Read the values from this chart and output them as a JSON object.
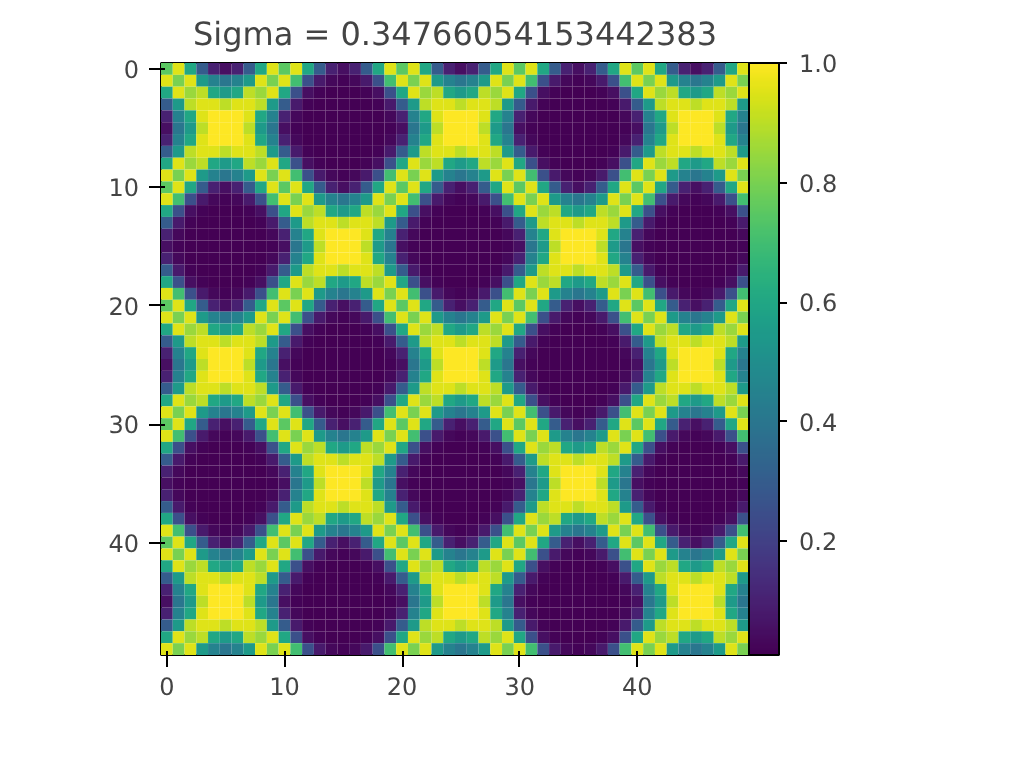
{
  "chart_data": {
    "type": "heatmap",
    "title": "Sigma = 0.34766054153442383",
    "xlim": [
      -0.5,
      49.5
    ],
    "xticks": [
      0,
      10,
      20,
      30,
      40
    ],
    "ylim": [
      49.5,
      -0.5
    ],
    "yticks": [
      0,
      10,
      20,
      30,
      40
    ],
    "clim": [
      0.01,
      1
    ],
    "cticks": [
      0.2,
      0.4,
      0.6,
      0.8,
      {
        "value": 1,
        "label": "1.0"
      }
    ],
    "grid": false,
    "cells": [
      [
        0.75,
        0.95,
        0.6,
        0.3,
        0.1,
        0.05,
        0.1,
        0.3,
        0.6,
        0.95,
        0.75,
        0.95,
        0.6,
        0.3,
        0.1,
        0.05,
        0.1,
        0.3,
        0.6,
        0.95,
        0.75,
        0.95,
        0.6,
        0.3,
        0.1,
        0.05,
        0.1,
        0.3,
        0.6,
        0.95,
        0.75,
        0.95,
        0.6,
        0.3,
        0.1,
        0.05,
        0.1,
        0.3,
        0.6,
        0.95,
        0.75,
        0.95,
        0.6,
        0.3,
        0.1,
        0.05,
        0.1,
        0.3,
        0.6,
        0.95
      ],
      [
        0.95,
        0.8,
        0.95,
        0.55,
        0.45,
        0.4,
        0.45,
        0.55,
        0.95,
        0.8,
        0.95,
        0.7,
        0.25,
        0.08,
        0.03,
        0.02,
        0.03,
        0.08,
        0.25,
        0.7,
        0.95,
        0.8,
        0.95,
        0.55,
        0.45,
        0.4,
        0.45,
        0.55,
        0.95,
        0.8,
        0.95,
        0.7,
        0.25,
        0.08,
        0.03,
        0.02,
        0.03,
        0.08,
        0.25,
        0.7,
        0.95,
        0.8,
        0.95,
        0.55,
        0.45,
        0.4,
        0.45,
        0.55,
        0.95,
        0.8
      ],
      [
        0.6,
        0.95,
        0.85,
        0.9,
        0.6,
        0.55,
        0.6,
        0.9,
        0.85,
        0.95,
        0.6,
        0.25,
        0.05,
        0.02,
        0.01,
        0.01,
        0.01,
        0.02,
        0.05,
        0.25,
        0.6,
        0.95,
        0.85,
        0.9,
        0.6,
        0.55,
        0.6,
        0.9,
        0.85,
        0.95,
        0.6,
        0.25,
        0.05,
        0.02,
        0.01,
        0.01,
        0.01,
        0.02,
        0.05,
        0.25,
        0.6,
        0.95,
        0.85,
        0.9,
        0.6,
        0.55,
        0.6,
        0.9,
        0.85,
        0.95
      ],
      [
        0.3,
        0.55,
        0.9,
        0.95,
        0.95,
        0.9,
        0.95,
        0.95,
        0.9,
        0.55,
        0.3,
        0.08,
        0.02,
        0.01,
        0.01,
        0.01,
        0.01,
        0.01,
        0.02,
        0.08,
        0.3,
        0.55,
        0.9,
        0.95,
        0.95,
        0.9,
        0.95,
        0.95,
        0.9,
        0.55,
        0.3,
        0.08,
        0.02,
        0.01,
        0.01,
        0.01,
        0.01,
        0.01,
        0.02,
        0.08,
        0.3,
        0.55,
        0.9,
        0.95,
        0.95,
        0.9,
        0.95,
        0.95,
        0.9,
        0.55
      ],
      [
        0.1,
        0.45,
        0.6,
        0.95,
        1,
        1,
        1,
        0.95,
        0.6,
        0.45,
        0.1,
        0.03,
        0.01,
        0.01,
        0.01,
        0.01,
        0.01,
        0.01,
        0.01,
        0.03,
        0.1,
        0.45,
        0.6,
        0.95,
        1,
        1,
        1,
        0.95,
        0.6,
        0.45,
        0.1,
        0.03,
        0.01,
        0.01,
        0.01,
        0.01,
        0.01,
        0.01,
        0.01,
        0.03,
        0.1,
        0.45,
        0.6,
        0.95,
        1,
        1,
        1,
        0.95,
        0.6,
        0.45
      ],
      [
        0.05,
        0.4,
        0.55,
        0.9,
        1,
        1,
        1,
        0.9,
        0.55,
        0.4,
        0.05,
        0.02,
        0.01,
        0.01,
        0.01,
        0.01,
        0.01,
        0.01,
        0.01,
        0.02,
        0.05,
        0.4,
        0.55,
        0.9,
        1,
        1,
        1,
        0.9,
        0.55,
        0.4,
        0.05,
        0.02,
        0.01,
        0.01,
        0.01,
        0.01,
        0.01,
        0.01,
        0.01,
        0.02,
        0.05,
        0.4,
        0.55,
        0.9,
        1,
        1,
        1,
        0.9,
        0.55,
        0.4
      ],
      [
        0.1,
        0.45,
        0.6,
        0.95,
        1,
        1,
        1,
        0.95,
        0.6,
        0.45,
        0.1,
        0.03,
        0.01,
        0.01,
        0.01,
        0.01,
        0.01,
        0.01,
        0.01,
        0.03,
        0.1,
        0.45,
        0.6,
        0.95,
        1,
        1,
        1,
        0.95,
        0.6,
        0.45,
        0.1,
        0.03,
        0.01,
        0.01,
        0.01,
        0.01,
        0.01,
        0.01,
        0.01,
        0.03,
        0.1,
        0.45,
        0.6,
        0.95,
        1,
        1,
        1,
        0.95,
        0.6,
        0.45
      ],
      [
        0.3,
        0.55,
        0.9,
        0.95,
        0.95,
        0.9,
        0.95,
        0.95,
        0.9,
        0.55,
        0.3,
        0.08,
        0.02,
        0.01,
        0.01,
        0.01,
        0.01,
        0.01,
        0.02,
        0.08,
        0.3,
        0.55,
        0.9,
        0.95,
        0.95,
        0.9,
        0.95,
        0.95,
        0.9,
        0.55,
        0.3,
        0.08,
        0.02,
        0.01,
        0.01,
        0.01,
        0.01,
        0.01,
        0.02,
        0.08,
        0.3,
        0.55,
        0.9,
        0.95,
        0.95,
        0.9,
        0.95,
        0.95,
        0.9,
        0.55
      ],
      [
        0.6,
        0.95,
        0.85,
        0.9,
        0.6,
        0.55,
        0.6,
        0.9,
        0.85,
        0.95,
        0.6,
        0.25,
        0.05,
        0.02,
        0.01,
        0.01,
        0.01,
        0.02,
        0.05,
        0.25,
        0.6,
        0.95,
        0.85,
        0.9,
        0.6,
        0.55,
        0.6,
        0.9,
        0.85,
        0.95,
        0.6,
        0.25,
        0.05,
        0.02,
        0.01,
        0.01,
        0.01,
        0.02,
        0.05,
        0.25,
        0.6,
        0.95,
        0.85,
        0.9,
        0.6,
        0.55,
        0.6,
        0.9,
        0.85,
        0.95
      ],
      [
        0.95,
        0.8,
        0.95,
        0.55,
        0.45,
        0.4,
        0.45,
        0.55,
        0.95,
        0.8,
        0.95,
        0.7,
        0.25,
        0.08,
        0.03,
        0.02,
        0.03,
        0.08,
        0.25,
        0.7,
        0.95,
        0.8,
        0.95,
        0.55,
        0.45,
        0.4,
        0.45,
        0.55,
        0.95,
        0.8,
        0.95,
        0.7,
        0.25,
        0.08,
        0.03,
        0.02,
        0.03,
        0.08,
        0.25,
        0.7,
        0.95,
        0.8,
        0.95,
        0.55,
        0.45,
        0.4,
        0.45,
        0.55,
        0.95,
        0.8
      ],
      [
        0.75,
        0.95,
        0.6,
        0.3,
        0.1,
        0.05,
        0.1,
        0.3,
        0.6,
        0.95,
        0.75,
        0.95,
        0.6,
        0.3,
        0.1,
        0.05,
        0.1,
        0.3,
        0.6,
        0.95,
        0.75,
        0.95,
        0.6,
        0.3,
        0.1,
        0.05,
        0.1,
        0.3,
        0.6,
        0.95,
        0.75,
        0.95,
        0.6,
        0.3,
        0.1,
        0.05,
        0.1,
        0.3,
        0.6,
        0.95,
        0.75,
        0.95,
        0.6,
        0.3,
        0.1,
        0.05,
        0.1,
        0.3,
        0.6,
        0.95
      ],
      [
        0.95,
        0.7,
        0.25,
        0.08,
        0.03,
        0.02,
        0.03,
        0.08,
        0.25,
        0.7,
        0.95,
        0.8,
        0.95,
        0.55,
        0.45,
        0.4,
        0.45,
        0.55,
        0.95,
        0.8,
        0.95,
        0.7,
        0.25,
        0.08,
        0.03,
        0.02,
        0.03,
        0.08,
        0.25,
        0.7,
        0.95,
        0.8,
        0.95,
        0.55,
        0.45,
        0.4,
        0.45,
        0.55,
        0.95,
        0.8,
        0.95,
        0.7,
        0.25,
        0.08,
        0.03,
        0.02,
        0.03,
        0.08,
        0.25,
        0.7
      ],
      [
        0.6,
        0.25,
        0.05,
        0.02,
        0.01,
        0.01,
        0.01,
        0.02,
        0.05,
        0.25,
        0.6,
        0.95,
        0.85,
        0.9,
        0.6,
        0.55,
        0.6,
        0.9,
        0.85,
        0.95,
        0.6,
        0.25,
        0.05,
        0.02,
        0.01,
        0.01,
        0.01,
        0.02,
        0.05,
        0.25,
        0.6,
        0.95,
        0.85,
        0.9,
        0.6,
        0.55,
        0.6,
        0.9,
        0.85,
        0.95,
        0.6,
        0.25,
        0.05,
        0.02,
        0.01,
        0.01,
        0.01,
        0.02,
        0.05,
        0.25
      ],
      [
        0.3,
        0.08,
        0.02,
        0.01,
        0.01,
        0.01,
        0.01,
        0.01,
        0.02,
        0.08,
        0.3,
        0.55,
        0.9,
        0.95,
        0.95,
        0.9,
        0.95,
        0.95,
        0.9,
        0.55,
        0.3,
        0.08,
        0.02,
        0.01,
        0.01,
        0.01,
        0.01,
        0.01,
        0.02,
        0.08,
        0.3,
        0.55,
        0.9,
        0.95,
        0.95,
        0.9,
        0.95,
        0.95,
        0.9,
        0.55,
        0.3,
        0.08,
        0.02,
        0.01,
        0.01,
        0.01,
        0.01,
        0.01,
        0.02,
        0.08
      ],
      [
        0.1,
        0.03,
        0.01,
        0.01,
        0.01,
        0.01,
        0.01,
        0.01,
        0.01,
        0.03,
        0.1,
        0.45,
        0.6,
        0.95,
        1,
        1,
        1,
        0.95,
        0.6,
        0.45,
        0.1,
        0.03,
        0.01,
        0.01,
        0.01,
        0.01,
        0.01,
        0.01,
        0.01,
        0.03,
        0.1,
        0.45,
        0.6,
        0.95,
        1,
        1,
        1,
        0.95,
        0.6,
        0.45,
        0.1,
        0.03,
        0.01,
        0.01,
        0.01,
        0.01,
        0.01,
        0.01,
        0.01,
        0.03
      ],
      [
        0.05,
        0.02,
        0.01,
        0.01,
        0.01,
        0.01,
        0.01,
        0.01,
        0.01,
        0.02,
        0.05,
        0.4,
        0.55,
        0.9,
        1,
        1,
        1,
        0.9,
        0.55,
        0.4,
        0.05,
        0.02,
        0.01,
        0.01,
        0.01,
        0.01,
        0.01,
        0.01,
        0.01,
        0.02,
        0.05,
        0.4,
        0.55,
        0.9,
        1,
        1,
        1,
        0.9,
        0.55,
        0.4,
        0.05,
        0.02,
        0.01,
        0.01,
        0.01,
        0.01,
        0.01,
        0.01,
        0.01,
        0.02
      ],
      [
        0.1,
        0.03,
        0.01,
        0.01,
        0.01,
        0.01,
        0.01,
        0.01,
        0.01,
        0.03,
        0.1,
        0.45,
        0.6,
        0.95,
        1,
        1,
        1,
        0.95,
        0.6,
        0.45,
        0.1,
        0.03,
        0.01,
        0.01,
        0.01,
        0.01,
        0.01,
        0.01,
        0.01,
        0.03,
        0.1,
        0.45,
        0.6,
        0.95,
        1,
        1,
        1,
        0.95,
        0.6,
        0.45,
        0.1,
        0.03,
        0.01,
        0.01,
        0.01,
        0.01,
        0.01,
        0.01,
        0.01,
        0.03
      ],
      [
        0.3,
        0.08,
        0.02,
        0.01,
        0.01,
        0.01,
        0.01,
        0.01,
        0.02,
        0.08,
        0.3,
        0.55,
        0.9,
        0.95,
        0.95,
        0.9,
        0.95,
        0.95,
        0.9,
        0.55,
        0.3,
        0.08,
        0.02,
        0.01,
        0.01,
        0.01,
        0.01,
        0.01,
        0.02,
        0.08,
        0.3,
        0.55,
        0.9,
        0.95,
        0.95,
        0.9,
        0.95,
        0.95,
        0.9,
        0.55,
        0.3,
        0.08,
        0.02,
        0.01,
        0.01,
        0.01,
        0.01,
        0.01,
        0.02,
        0.08
      ],
      [
        0.6,
        0.25,
        0.05,
        0.02,
        0.01,
        0.01,
        0.01,
        0.02,
        0.05,
        0.25,
        0.6,
        0.95,
        0.85,
        0.9,
        0.6,
        0.55,
        0.6,
        0.9,
        0.85,
        0.95,
        0.6,
        0.25,
        0.05,
        0.02,
        0.01,
        0.01,
        0.01,
        0.02,
        0.05,
        0.25,
        0.6,
        0.95,
        0.85,
        0.9,
        0.6,
        0.55,
        0.6,
        0.9,
        0.85,
        0.95,
        0.6,
        0.25,
        0.05,
        0.02,
        0.01,
        0.01,
        0.01,
        0.02,
        0.05,
        0.25
      ],
      [
        0.95,
        0.7,
        0.25,
        0.08,
        0.03,
        0.02,
        0.03,
        0.08,
        0.25,
        0.7,
        0.95,
        0.8,
        0.95,
        0.55,
        0.45,
        0.4,
        0.45,
        0.55,
        0.95,
        0.8,
        0.95,
        0.7,
        0.25,
        0.08,
        0.03,
        0.02,
        0.03,
        0.08,
        0.25,
        0.7,
        0.95,
        0.8,
        0.95,
        0.55,
        0.45,
        0.4,
        0.45,
        0.55,
        0.95,
        0.8,
        0.95,
        0.7,
        0.25,
        0.08,
        0.03,
        0.02,
        0.03,
        0.08,
        0.25,
        0.7
      ],
      [
        0.75,
        0.95,
        0.6,
        0.3,
        0.1,
        0.05,
        0.1,
        0.3,
        0.6,
        0.95,
        0.75,
        0.95,
        0.6,
        0.3,
        0.1,
        0.05,
        0.1,
        0.3,
        0.6,
        0.95,
        0.75,
        0.95,
        0.6,
        0.3,
        0.1,
        0.05,
        0.1,
        0.3,
        0.6,
        0.95,
        0.75,
        0.95,
        0.6,
        0.3,
        0.1,
        0.05,
        0.1,
        0.3,
        0.6,
        0.95,
        0.75,
        0.95,
        0.6,
        0.3,
        0.1,
        0.05,
        0.1,
        0.3,
        0.6,
        0.95
      ],
      [
        0.95,
        0.8,
        0.95,
        0.55,
        0.45,
        0.4,
        0.45,
        0.55,
        0.95,
        0.8,
        0.95,
        0.7,
        0.25,
        0.08,
        0.03,
        0.02,
        0.03,
        0.08,
        0.25,
        0.7,
        0.95,
        0.8,
        0.95,
        0.55,
        0.45,
        0.4,
        0.45,
        0.55,
        0.95,
        0.8,
        0.95,
        0.7,
        0.25,
        0.08,
        0.03,
        0.02,
        0.03,
        0.08,
        0.25,
        0.7,
        0.95,
        0.8,
        0.95,
        0.55,
        0.45,
        0.4,
        0.45,
        0.55,
        0.95,
        0.8
      ],
      [
        0.6,
        0.95,
        0.85,
        0.9,
        0.6,
        0.55,
        0.6,
        0.9,
        0.85,
        0.95,
        0.6,
        0.25,
        0.05,
        0.02,
        0.01,
        0.01,
        0.01,
        0.02,
        0.05,
        0.25,
        0.6,
        0.95,
        0.85,
        0.9,
        0.6,
        0.55,
        0.6,
        0.9,
        0.85,
        0.95,
        0.6,
        0.25,
        0.05,
        0.02,
        0.01,
        0.01,
        0.01,
        0.02,
        0.05,
        0.25,
        0.6,
        0.95,
        0.85,
        0.9,
        0.6,
        0.55,
        0.6,
        0.9,
        0.85,
        0.95
      ],
      [
        0.3,
        0.55,
        0.9,
        0.95,
        0.95,
        0.9,
        0.95,
        0.95,
        0.9,
        0.55,
        0.3,
        0.08,
        0.02,
        0.01,
        0.01,
        0.01,
        0.01,
        0.01,
        0.02,
        0.08,
        0.3,
        0.55,
        0.9,
        0.95,
        0.95,
        0.9,
        0.95,
        0.95,
        0.9,
        0.55,
        0.3,
        0.08,
        0.02,
        0.01,
        0.01,
        0.01,
        0.01,
        0.01,
        0.02,
        0.08,
        0.3,
        0.55,
        0.9,
        0.95,
        0.95,
        0.9,
        0.95,
        0.95,
        0.9,
        0.55
      ],
      [
        0.1,
        0.45,
        0.6,
        0.95,
        1,
        1,
        1,
        0.95,
        0.6,
        0.45,
        0.1,
        0.03,
        0.01,
        0.01,
        0.01,
        0.01,
        0.01,
        0.01,
        0.01,
        0.03,
        0.1,
        0.45,
        0.6,
        0.95,
        1,
        1,
        1,
        0.95,
        0.6,
        0.45,
        0.1,
        0.03,
        0.01,
        0.01,
        0.01,
        0.01,
        0.01,
        0.01,
        0.01,
        0.03,
        0.1,
        0.45,
        0.6,
        0.95,
        1,
        1,
        1,
        0.95,
        0.6,
        0.45
      ],
      [
        0.05,
        0.4,
        0.55,
        0.9,
        1,
        1,
        1,
        0.9,
        0.55,
        0.4,
        0.05,
        0.02,
        0.01,
        0.01,
        0.01,
        0.01,
        0.01,
        0.01,
        0.01,
        0.02,
        0.05,
        0.4,
        0.55,
        0.9,
        1,
        1,
        1,
        0.9,
        0.55,
        0.4,
        0.05,
        0.02,
        0.01,
        0.01,
        0.01,
        0.01,
        0.01,
        0.01,
        0.01,
        0.02,
        0.05,
        0.4,
        0.55,
        0.9,
        1,
        1,
        1,
        0.9,
        0.55,
        0.4
      ],
      [
        0.1,
        0.45,
        0.6,
        0.95,
        1,
        1,
        1,
        0.95,
        0.6,
        0.45,
        0.1,
        0.03,
        0.01,
        0.01,
        0.01,
        0.01,
        0.01,
        0.01,
        0.01,
        0.03,
        0.1,
        0.45,
        0.6,
        0.95,
        1,
        1,
        1,
        0.95,
        0.6,
        0.45,
        0.1,
        0.03,
        0.01,
        0.01,
        0.01,
        0.01,
        0.01,
        0.01,
        0.01,
        0.03,
        0.1,
        0.45,
        0.6,
        0.95,
        1,
        1,
        1,
        0.95,
        0.6,
        0.45
      ],
      [
        0.3,
        0.55,
        0.9,
        0.95,
        0.95,
        0.9,
        0.95,
        0.95,
        0.9,
        0.55,
        0.3,
        0.08,
        0.02,
        0.01,
        0.01,
        0.01,
        0.01,
        0.01,
        0.02,
        0.08,
        0.3,
        0.55,
        0.9,
        0.95,
        0.95,
        0.9,
        0.95,
        0.95,
        0.9,
        0.55,
        0.3,
        0.08,
        0.02,
        0.01,
        0.01,
        0.01,
        0.01,
        0.01,
        0.02,
        0.08,
        0.3,
        0.55,
        0.9,
        0.95,
        0.95,
        0.9,
        0.95,
        0.95,
        0.9,
        0.55
      ],
      [
        0.6,
        0.95,
        0.85,
        0.9,
        0.6,
        0.55,
        0.6,
        0.9,
        0.85,
        0.95,
        0.6,
        0.25,
        0.05,
        0.02,
        0.01,
        0.01,
        0.01,
        0.02,
        0.05,
        0.25,
        0.6,
        0.95,
        0.85,
        0.9,
        0.6,
        0.55,
        0.6,
        0.9,
        0.85,
        0.95,
        0.6,
        0.25,
        0.05,
        0.02,
        0.01,
        0.01,
        0.01,
        0.02,
        0.05,
        0.25,
        0.6,
        0.95,
        0.85,
        0.9,
        0.6,
        0.55,
        0.6,
        0.9,
        0.85,
        0.95
      ],
      [
        0.95,
        0.8,
        0.95,
        0.55,
        0.45,
        0.4,
        0.45,
        0.55,
        0.95,
        0.8,
        0.95,
        0.7,
        0.25,
        0.08,
        0.03,
        0.02,
        0.03,
        0.08,
        0.25,
        0.7,
        0.95,
        0.8,
        0.95,
        0.55,
        0.45,
        0.4,
        0.45,
        0.55,
        0.95,
        0.8,
        0.95,
        0.7,
        0.25,
        0.08,
        0.03,
        0.02,
        0.03,
        0.08,
        0.25,
        0.7,
        0.95,
        0.8,
        0.95,
        0.55,
        0.45,
        0.4,
        0.45,
        0.55,
        0.95,
        0.8
      ],
      [
        0.75,
        0.95,
        0.6,
        0.3,
        0.1,
        0.05,
        0.1,
        0.3,
        0.6,
        0.95,
        0.75,
        0.95,
        0.6,
        0.3,
        0.1,
        0.05,
        0.1,
        0.3,
        0.6,
        0.95,
        0.75,
        0.95,
        0.6,
        0.3,
        0.1,
        0.05,
        0.1,
        0.3,
        0.6,
        0.95,
        0.75,
        0.95,
        0.6,
        0.3,
        0.1,
        0.05,
        0.1,
        0.3,
        0.6,
        0.95,
        0.75,
        0.95,
        0.6,
        0.3,
        0.1,
        0.05,
        0.1,
        0.3,
        0.6,
        0.95
      ],
      [
        0.95,
        0.7,
        0.25,
        0.08,
        0.03,
        0.02,
        0.03,
        0.08,
        0.25,
        0.7,
        0.95,
        0.8,
        0.95,
        0.55,
        0.45,
        0.4,
        0.45,
        0.55,
        0.95,
        0.8,
        0.95,
        0.7,
        0.25,
        0.08,
        0.03,
        0.02,
        0.03,
        0.08,
        0.25,
        0.7,
        0.95,
        0.8,
        0.95,
        0.55,
        0.45,
        0.4,
        0.45,
        0.55,
        0.95,
        0.8,
        0.95,
        0.7,
        0.25,
        0.08,
        0.03,
        0.02,
        0.03,
        0.08,
        0.25,
        0.7
      ],
      [
        0.6,
        0.25,
        0.05,
        0.02,
        0.01,
        0.01,
        0.01,
        0.02,
        0.05,
        0.25,
        0.6,
        0.95,
        0.85,
        0.9,
        0.6,
        0.55,
        0.6,
        0.9,
        0.85,
        0.95,
        0.6,
        0.25,
        0.05,
        0.02,
        0.01,
        0.01,
        0.01,
        0.02,
        0.05,
        0.25,
        0.6,
        0.95,
        0.85,
        0.9,
        0.6,
        0.55,
        0.6,
        0.9,
        0.85,
        0.95,
        0.6,
        0.25,
        0.05,
        0.02,
        0.01,
        0.01,
        0.01,
        0.02,
        0.05,
        0.25
      ],
      [
        0.3,
        0.08,
        0.02,
        0.01,
        0.01,
        0.01,
        0.01,
        0.01,
        0.02,
        0.08,
        0.3,
        0.55,
        0.9,
        0.95,
        0.95,
        0.9,
        0.95,
        0.95,
        0.9,
        0.55,
        0.3,
        0.08,
        0.02,
        0.01,
        0.01,
        0.01,
        0.01,
        0.01,
        0.02,
        0.08,
        0.3,
        0.55,
        0.9,
        0.95,
        0.95,
        0.9,
        0.95,
        0.95,
        0.9,
        0.55,
        0.3,
        0.08,
        0.02,
        0.01,
        0.01,
        0.01,
        0.01,
        0.01,
        0.02,
        0.08
      ],
      [
        0.1,
        0.03,
        0.01,
        0.01,
        0.01,
        0.01,
        0.01,
        0.01,
        0.01,
        0.03,
        0.1,
        0.45,
        0.6,
        0.95,
        1,
        1,
        1,
        0.95,
        0.6,
        0.45,
        0.1,
        0.03,
        0.01,
        0.01,
        0.01,
        0.01,
        0.01,
        0.01,
        0.01,
        0.03,
        0.1,
        0.45,
        0.6,
        0.95,
        1,
        1,
        1,
        0.95,
        0.6,
        0.45,
        0.1,
        0.03,
        0.01,
        0.01,
        0.01,
        0.01,
        0.01,
        0.01,
        0.01,
        0.03
      ],
      [
        0.05,
        0.02,
        0.01,
        0.01,
        0.01,
        0.01,
        0.01,
        0.01,
        0.01,
        0.02,
        0.05,
        0.4,
        0.55,
        0.9,
        1,
        1,
        1,
        0.9,
        0.55,
        0.4,
        0.05,
        0.02,
        0.01,
        0.01,
        0.01,
        0.01,
        0.01,
        0.01,
        0.01,
        0.02,
        0.05,
        0.4,
        0.55,
        0.9,
        1,
        1,
        1,
        0.9,
        0.55,
        0.4,
        0.05,
        0.02,
        0.01,
        0.01,
        0.01,
        0.01,
        0.01,
        0.01,
        0.01,
        0.02
      ],
      [
        0.1,
        0.03,
        0.01,
        0.01,
        0.01,
        0.01,
        0.01,
        0.01,
        0.01,
        0.03,
        0.1,
        0.45,
        0.6,
        0.95,
        1,
        1,
        1,
        0.95,
        0.6,
        0.45,
        0.1,
        0.03,
        0.01,
        0.01,
        0.01,
        0.01,
        0.01,
        0.01,
        0.01,
        0.03,
        0.1,
        0.45,
        0.6,
        0.95,
        1,
        1,
        1,
        0.95,
        0.6,
        0.45,
        0.1,
        0.03,
        0.01,
        0.01,
        0.01,
        0.01,
        0.01,
        0.01,
        0.01,
        0.03
      ],
      [
        0.3,
        0.08,
        0.02,
        0.01,
        0.01,
        0.01,
        0.01,
        0.01,
        0.02,
        0.08,
        0.3,
        0.55,
        0.9,
        0.95,
        0.95,
        0.9,
        0.95,
        0.95,
        0.9,
        0.55,
        0.3,
        0.08,
        0.02,
        0.01,
        0.01,
        0.01,
        0.01,
        0.01,
        0.02,
        0.08,
        0.3,
        0.55,
        0.9,
        0.95,
        0.95,
        0.9,
        0.95,
        0.95,
        0.9,
        0.55,
        0.3,
        0.08,
        0.02,
        0.01,
        0.01,
        0.01,
        0.01,
        0.01,
        0.02,
        0.08
      ],
      [
        0.6,
        0.25,
        0.05,
        0.02,
        0.01,
        0.01,
        0.01,
        0.02,
        0.05,
        0.25,
        0.6,
        0.95,
        0.85,
        0.9,
        0.6,
        0.55,
        0.6,
        0.9,
        0.85,
        0.95,
        0.6,
        0.25,
        0.05,
        0.02,
        0.01,
        0.01,
        0.01,
        0.02,
        0.05,
        0.25,
        0.6,
        0.95,
        0.85,
        0.9,
        0.6,
        0.55,
        0.6,
        0.9,
        0.85,
        0.95,
        0.6,
        0.25,
        0.05,
        0.02,
        0.01,
        0.01,
        0.01,
        0.02,
        0.05,
        0.25
      ],
      [
        0.95,
        0.7,
        0.25,
        0.08,
        0.03,
        0.02,
        0.03,
        0.08,
        0.25,
        0.7,
        0.95,
        0.8,
        0.95,
        0.55,
        0.45,
        0.4,
        0.45,
        0.55,
        0.95,
        0.8,
        0.95,
        0.7,
        0.25,
        0.08,
        0.03,
        0.02,
        0.03,
        0.08,
        0.25,
        0.7,
        0.95,
        0.8,
        0.95,
        0.55,
        0.45,
        0.4,
        0.45,
        0.55,
        0.95,
        0.8,
        0.95,
        0.7,
        0.25,
        0.08,
        0.03,
        0.02,
        0.03,
        0.08,
        0.25,
        0.7
      ],
      [
        0.75,
        0.95,
        0.6,
        0.3,
        0.1,
        0.05,
        0.1,
        0.3,
        0.6,
        0.95,
        0.75,
        0.95,
        0.6,
        0.3,
        0.1,
        0.05,
        0.1,
        0.3,
        0.6,
        0.95,
        0.75,
        0.95,
        0.6,
        0.3,
        0.1,
        0.05,
        0.1,
        0.3,
        0.6,
        0.95,
        0.75,
        0.95,
        0.6,
        0.3,
        0.1,
        0.05,
        0.1,
        0.3,
        0.6,
        0.95,
        0.75,
        0.95,
        0.6,
        0.3,
        0.1,
        0.05,
        0.1,
        0.3,
        0.6,
        0.95
      ],
      [
        0.95,
        0.8,
        0.95,
        0.55,
        0.45,
        0.4,
        0.45,
        0.55,
        0.95,
        0.8,
        0.95,
        0.7,
        0.25,
        0.08,
        0.03,
        0.02,
        0.03,
        0.08,
        0.25,
        0.7,
        0.95,
        0.8,
        0.95,
        0.55,
        0.45,
        0.4,
        0.45,
        0.55,
        0.95,
        0.8,
        0.95,
        0.7,
        0.25,
        0.08,
        0.03,
        0.02,
        0.03,
        0.08,
        0.25,
        0.7,
        0.95,
        0.8,
        0.95,
        0.55,
        0.45,
        0.4,
        0.45,
        0.55,
        0.95,
        0.8
      ],
      [
        0.6,
        0.95,
        0.85,
        0.9,
        0.6,
        0.55,
        0.6,
        0.9,
        0.85,
        0.95,
        0.6,
        0.25,
        0.05,
        0.02,
        0.01,
        0.01,
        0.01,
        0.02,
        0.05,
        0.25,
        0.6,
        0.95,
        0.85,
        0.9,
        0.6,
        0.55,
        0.6,
        0.9,
        0.85,
        0.95,
        0.6,
        0.25,
        0.05,
        0.02,
        0.01,
        0.01,
        0.01,
        0.02,
        0.05,
        0.25,
        0.6,
        0.95,
        0.85,
        0.9,
        0.6,
        0.55,
        0.6,
        0.9,
        0.85,
        0.95
      ],
      [
        0.3,
        0.55,
        0.9,
        0.95,
        0.95,
        0.9,
        0.95,
        0.95,
        0.9,
        0.55,
        0.3,
        0.08,
        0.02,
        0.01,
        0.01,
        0.01,
        0.01,
        0.01,
        0.02,
        0.08,
        0.3,
        0.55,
        0.9,
        0.95,
        0.95,
        0.9,
        0.95,
        0.95,
        0.9,
        0.55,
        0.3,
        0.08,
        0.02,
        0.01,
        0.01,
        0.01,
        0.01,
        0.01,
        0.02,
        0.08,
        0.3,
        0.55,
        0.9,
        0.95,
        0.95,
        0.9,
        0.95,
        0.95,
        0.9,
        0.55
      ],
      [
        0.1,
        0.45,
        0.6,
        0.95,
        1,
        1,
        1,
        0.95,
        0.6,
        0.45,
        0.1,
        0.03,
        0.01,
        0.01,
        0.01,
        0.01,
        0.01,
        0.01,
        0.01,
        0.03,
        0.1,
        0.45,
        0.6,
        0.95,
        1,
        1,
        1,
        0.95,
        0.6,
        0.45,
        0.1,
        0.03,
        0.01,
        0.01,
        0.01,
        0.01,
        0.01,
        0.01,
        0.01,
        0.03,
        0.1,
        0.45,
        0.6,
        0.95,
        1,
        1,
        1,
        0.95,
        0.6,
        0.45
      ],
      [
        0.05,
        0.4,
        0.55,
        0.9,
        1,
        1,
        1,
        0.9,
        0.55,
        0.4,
        0.05,
        0.02,
        0.01,
        0.01,
        0.01,
        0.01,
        0.01,
        0.01,
        0.01,
        0.02,
        0.05,
        0.4,
        0.55,
        0.9,
        1,
        1,
        1,
        0.9,
        0.55,
        0.4,
        0.05,
        0.02,
        0.01,
        0.01,
        0.01,
        0.01,
        0.01,
        0.01,
        0.01,
        0.02,
        0.05,
        0.4,
        0.55,
        0.9,
        1,
        1,
        1,
        0.9,
        0.55,
        0.4
      ],
      [
        0.1,
        0.45,
        0.6,
        0.95,
        1,
        1,
        1,
        0.95,
        0.6,
        0.45,
        0.1,
        0.03,
        0.01,
        0.01,
        0.01,
        0.01,
        0.01,
        0.01,
        0.01,
        0.03,
        0.1,
        0.45,
        0.6,
        0.95,
        1,
        1,
        1,
        0.95,
        0.6,
        0.45,
        0.1,
        0.03,
        0.01,
        0.01,
        0.01,
        0.01,
        0.01,
        0.01,
        0.01,
        0.03,
        0.1,
        0.45,
        0.6,
        0.95,
        1,
        1,
        1,
        0.95,
        0.6,
        0.45
      ],
      [
        0.3,
        0.55,
        0.9,
        0.95,
        0.95,
        0.9,
        0.95,
        0.95,
        0.9,
        0.55,
        0.3,
        0.08,
        0.02,
        0.01,
        0.01,
        0.01,
        0.01,
        0.01,
        0.02,
        0.08,
        0.3,
        0.55,
        0.9,
        0.95,
        0.95,
        0.9,
        0.95,
        0.95,
        0.9,
        0.55,
        0.3,
        0.08,
        0.02,
        0.01,
        0.01,
        0.01,
        0.01,
        0.01,
        0.02,
        0.08,
        0.3,
        0.55,
        0.9,
        0.95,
        0.95,
        0.9,
        0.95,
        0.95,
        0.9,
        0.55
      ],
      [
        0.6,
        0.95,
        0.85,
        0.9,
        0.6,
        0.55,
        0.6,
        0.9,
        0.85,
        0.95,
        0.6,
        0.25,
        0.05,
        0.02,
        0.01,
        0.01,
        0.01,
        0.02,
        0.05,
        0.25,
        0.6,
        0.95,
        0.85,
        0.9,
        0.6,
        0.55,
        0.6,
        0.9,
        0.85,
        0.95,
        0.6,
        0.25,
        0.05,
        0.02,
        0.01,
        0.01,
        0.01,
        0.02,
        0.05,
        0.25,
        0.6,
        0.95,
        0.85,
        0.9,
        0.6,
        0.55,
        0.6,
        0.9,
        0.85,
        0.95
      ],
      [
        0.95,
        0.8,
        0.95,
        0.55,
        0.45,
        0.4,
        0.45,
        0.55,
        0.95,
        0.8,
        0.95,
        0.7,
        0.25,
        0.08,
        0.03,
        0.02,
        0.03,
        0.08,
        0.25,
        0.7,
        0.95,
        0.8,
        0.95,
        0.55,
        0.45,
        0.4,
        0.45,
        0.55,
        0.95,
        0.8,
        0.95,
        0.7,
        0.25,
        0.08,
        0.03,
        0.02,
        0.03,
        0.08,
        0.25,
        0.7,
        0.95,
        0.8,
        0.95,
        0.55,
        0.45,
        0.4,
        0.45,
        0.55,
        0.95,
        0.8
      ]
    ]
  }
}
